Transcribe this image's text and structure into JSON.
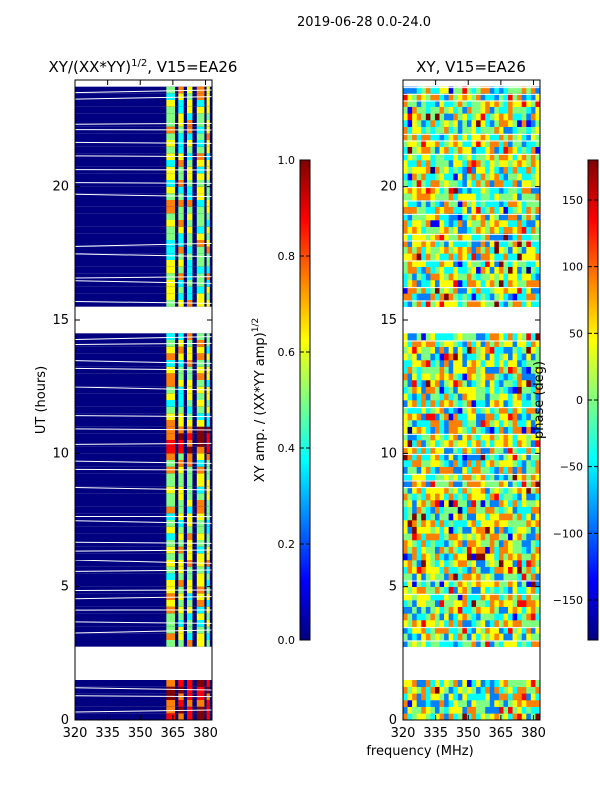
{
  "suptitle": "2019-06-28 0.0-24.0",
  "colors": {
    "jet": [
      "#000080",
      "#0000ff",
      "#0080ff",
      "#00ffff",
      "#80ff80",
      "#ffff00",
      "#ff8000",
      "#ff0000",
      "#800000"
    ],
    "gap": "#ffffff",
    "frame": "#000000"
  },
  "chart_data": [
    {
      "type": "heatmap",
      "title_main": "XY/(XX*YY)",
      "title_sup": "1/2",
      "title_rest": ", V15=EA26",
      "xlabel": "",
      "ylabel": "UT (hours)",
      "xlim": [
        320,
        383
      ],
      "ylim": [
        0,
        24
      ],
      "xticks": [
        320,
        335,
        350,
        365,
        380
      ],
      "yticks": [
        0,
        5,
        10,
        15,
        20
      ],
      "gaps_hours": [
        [
          1.55,
          2.7
        ],
        [
          14.6,
          15.6
        ],
        [
          23.65,
          24.0
        ]
      ],
      "colorbar": {
        "label_main": "XY amp. / (XX*YY amp)",
        "label_sup": "1/2",
        "ticks": [
          0.0,
          0.2,
          0.4,
          0.6,
          0.8,
          1.0
        ],
        "tick_labels": [
          "0.0",
          "0.2",
          "0.4",
          "0.6",
          "0.8",
          "1.0"
        ],
        "range": [
          0,
          1
        ]
      }
    },
    {
      "type": "heatmap",
      "title": "XY, V15=EA26",
      "xlabel": "frequency (MHz)",
      "ylabel": "",
      "xlim": [
        320,
        383
      ],
      "ylim": [
        0,
        24
      ],
      "xticks": [
        320,
        335,
        350,
        365,
        380
      ],
      "yticks": [
        0,
        5,
        10,
        15,
        20
      ],
      "gaps_hours": [
        [
          1.55,
          2.7
        ],
        [
          14.6,
          15.6
        ],
        [
          23.65,
          24.0
        ]
      ],
      "colorbar": {
        "label": "phase (deg)",
        "ticks": [
          -150,
          -100,
          -50,
          0,
          50,
          100,
          150
        ],
        "tick_labels": [
          "−150",
          "−100",
          "−50",
          "0",
          "50",
          "100",
          "150"
        ],
        "range": [
          -180,
          180
        ]
      }
    }
  ]
}
